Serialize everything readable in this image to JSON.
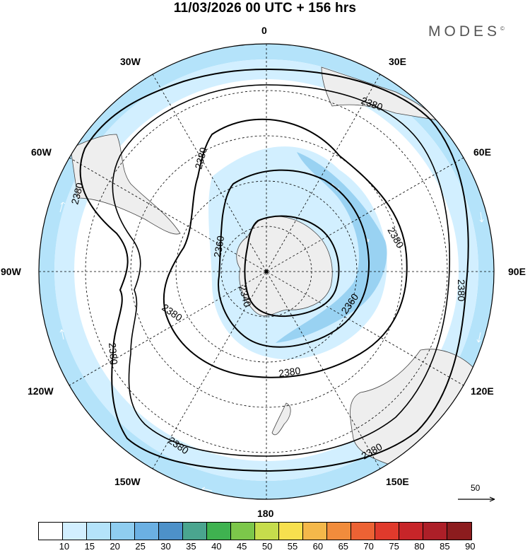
{
  "title": "11/03/2026  00 UTC  + 156 hrs",
  "brand": {
    "name": "MODES",
    "mark": "©"
  },
  "lon_labels": {
    "n": "0",
    "nne": "30E",
    "ene": "60E",
    "e": "90E",
    "ese": "120E",
    "sse": "150E",
    "s": "180",
    "ssw": "150W",
    "wsw": "120W",
    "w": "90W",
    "wnw": "60W",
    "nnw": "30W"
  },
  "contours": {
    "outer": "2380",
    "middle": "2360",
    "inner": "2340",
    "labels": [
      "2380",
      "2380",
      "2380",
      "2380",
      "2380",
      "2380",
      "2380",
      "2360",
      "2360",
      "2340"
    ]
  },
  "wind_reference": "50",
  "colorbar": {
    "colors": [
      "#ffffff",
      "#d2efff",
      "#b4e3fa",
      "#8fcdf0",
      "#6bb0e3",
      "#4d91c9",
      "#4aa58f",
      "#3fb250",
      "#7cc74a",
      "#c6dd4c",
      "#f7e04e",
      "#f4b84a",
      "#f18c3c",
      "#ec6234",
      "#e03a2c",
      "#c72529",
      "#ad1f28",
      "#8c1c1e"
    ],
    "ticks": [
      "10",
      "15",
      "20",
      "25",
      "30",
      "35",
      "40",
      "45",
      "50",
      "55",
      "60",
      "65",
      "70",
      "75",
      "80",
      "85",
      "90"
    ]
  }
}
